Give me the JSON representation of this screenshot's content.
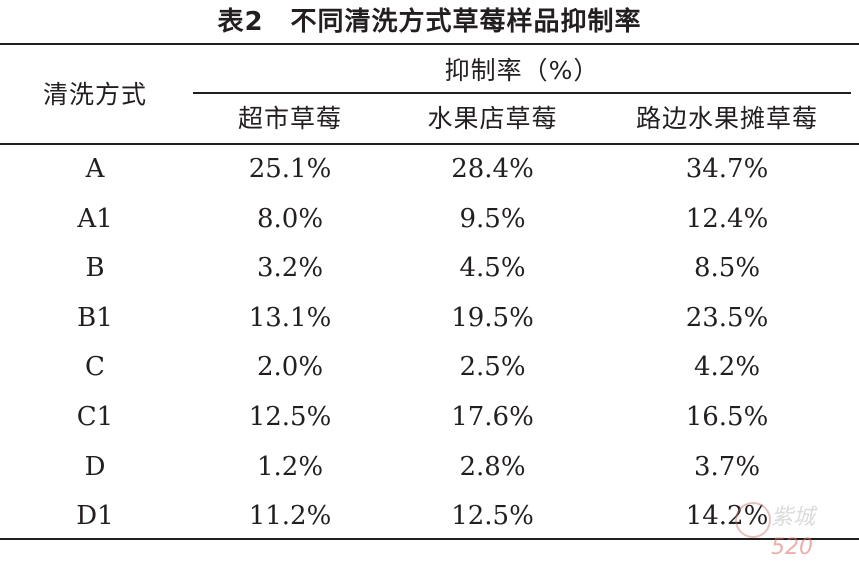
{
  "caption": "表2　不同清洗方式草莓样品抑制率",
  "headers": {
    "method": "清洗方式",
    "group": "抑制率（%）",
    "columns": [
      "超市草莓",
      "水果店草莓",
      "路边水果摊草莓"
    ]
  },
  "rows": [
    {
      "method": "A",
      "values": [
        "25.1%",
        "28.4%",
        "34.7%"
      ]
    },
    {
      "method": "A1",
      "values": [
        "8.0%",
        "9.5%",
        "12.4%"
      ]
    },
    {
      "method": "B",
      "values": [
        "3.2%",
        "4.5%",
        "8.5%"
      ]
    },
    {
      "method": "B1",
      "values": [
        "13.1%",
        "19.5%",
        "23.5%"
      ]
    },
    {
      "method": "C",
      "values": [
        "2.0%",
        "2.5%",
        "4.2%"
      ]
    },
    {
      "method": "C1",
      "values": [
        "12.5%",
        "17.6%",
        "16.5%"
      ]
    },
    {
      "method": "D",
      "values": [
        "1.2%",
        "2.8%",
        "3.7%"
      ]
    },
    {
      "method": "D1",
      "values": [
        "11.2%",
        "12.5%",
        "14.2%"
      ]
    }
  ],
  "watermark": {
    "text": "紫城",
    "number": "520"
  }
}
